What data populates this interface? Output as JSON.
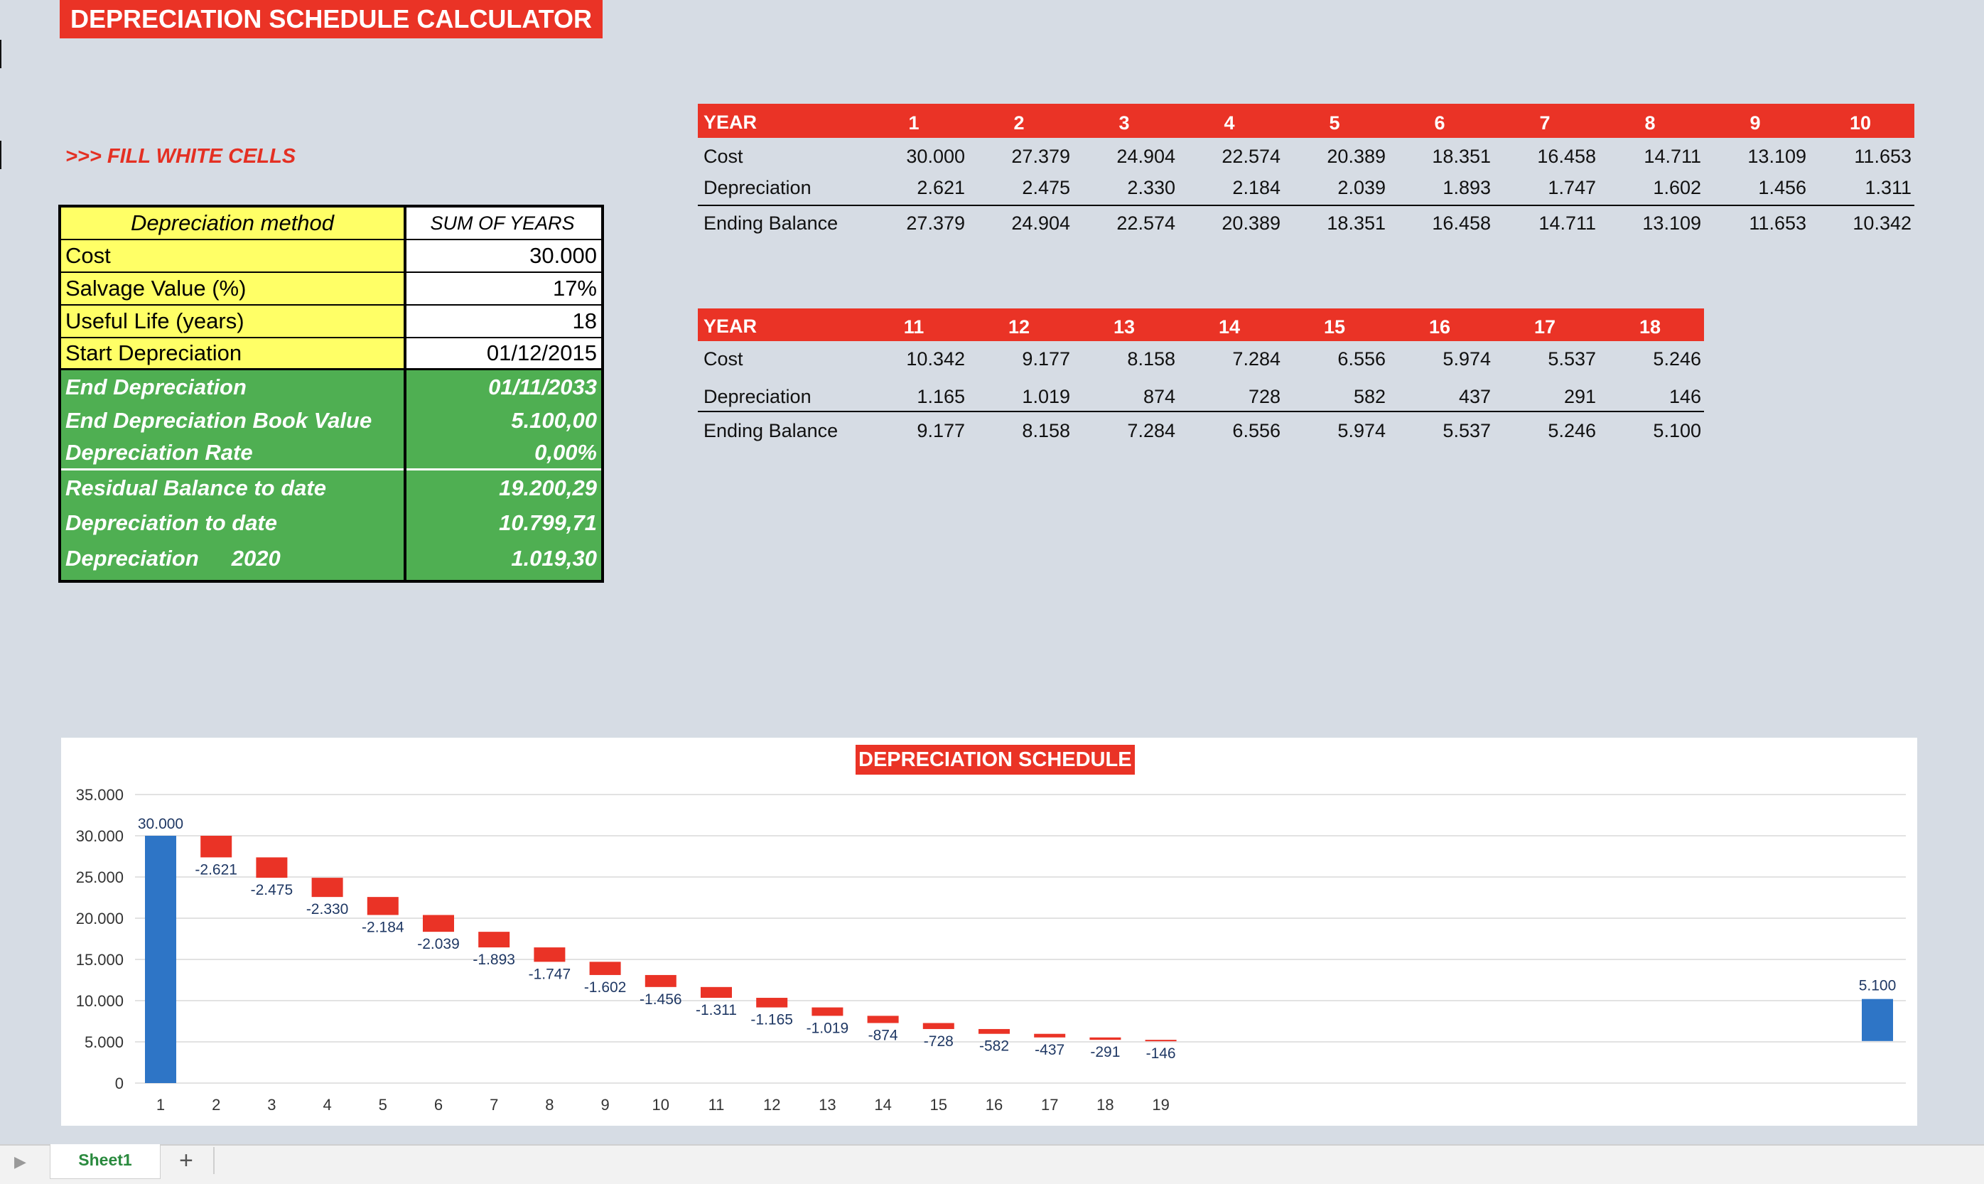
{
  "title": "DEPRECIATION SCHEDULE CALCULATOR",
  "fill_hint": ">>> FILL WHITE CELLS",
  "inputs": {
    "method_label": "Depreciation method",
    "method_value": "SUM OF YEARS",
    "cost_label": "Cost",
    "cost_value": "30.000",
    "salvage_label": "Salvage Value (%)",
    "salvage_value": "17%",
    "life_label": "Useful Life (years)",
    "life_value": "18",
    "start_label": "Start Depreciation",
    "start_value": "01/12/2015"
  },
  "results": {
    "end_dep_label": "End Depreciation",
    "end_dep_value": "01/11/2033",
    "end_book_label": "End Depreciation Book Value",
    "end_book_value": "5.100,00",
    "rate_label": "Depreciation Rate",
    "rate_value": "0,00%",
    "residual_label": "Residual Balance to date",
    "residual_value": "19.200,29",
    "to_date_label": "Depreciation to date",
    "to_date_value": "10.799,71",
    "year_dep_label": "Depreciation",
    "year_dep_year": "2020",
    "year_dep_value": "1.019,30"
  },
  "schedule_labels": {
    "year": "YEAR",
    "cost": "Cost",
    "depreciation": "Depreciation",
    "ending": "Ending Balance"
  },
  "schedule1": {
    "years": [
      "1",
      "2",
      "3",
      "4",
      "5",
      "6",
      "7",
      "8",
      "9",
      "10"
    ],
    "cost": [
      "30.000",
      "27.379",
      "24.904",
      "22.574",
      "20.389",
      "18.351",
      "16.458",
      "14.711",
      "13.109",
      "11.653"
    ],
    "depreciation": [
      "2.621",
      "2.475",
      "2.330",
      "2.184",
      "2.039",
      "1.893",
      "1.747",
      "1.602",
      "1.456",
      "1.311"
    ],
    "ending": [
      "27.379",
      "24.904",
      "22.574",
      "20.389",
      "18.351",
      "16.458",
      "14.711",
      "13.109",
      "11.653",
      "10.342"
    ]
  },
  "schedule2": {
    "years": [
      "11",
      "12",
      "13",
      "14",
      "15",
      "16",
      "17",
      "18"
    ],
    "cost": [
      "10.342",
      "9.177",
      "8.158",
      "7.284",
      "6.556",
      "5.974",
      "5.537",
      "5.246"
    ],
    "depreciation": [
      "1.165",
      "1.019",
      "874",
      "728",
      "582",
      "437",
      "291",
      "146"
    ],
    "ending": [
      "9.177",
      "8.158",
      "7.284",
      "6.556",
      "5.974",
      "5.537",
      "5.246",
      "5.100"
    ]
  },
  "chart_data": {
    "type": "bar",
    "title": "DEPRECIATION SCHEDULE",
    "categories": [
      "1",
      "2",
      "3",
      "4",
      "5",
      "6",
      "7",
      "8",
      "9",
      "10",
      "11",
      "12",
      "13",
      "14",
      "15",
      "16",
      "17",
      "18",
      "19"
    ],
    "ylim": [
      0,
      35000
    ],
    "yticks": [
      0,
      5000,
      10000,
      15000,
      20000,
      25000,
      30000,
      35000
    ],
    "ytick_labels": [
      "0",
      "5.000",
      "10.000",
      "15.000",
      "20.000",
      "25.000",
      "30.000",
      "35.000"
    ],
    "grid": true,
    "start": {
      "category": "1",
      "value": 30000,
      "label": "30.000"
    },
    "decrements": [
      2621,
      2475,
      2330,
      2184,
      2039,
      1893,
      1747,
      1602,
      1456,
      1311,
      1165,
      1019,
      874,
      728,
      582,
      437,
      291,
      146
    ],
    "decrement_labels": [
      "-2.621",
      "-2.475",
      "-2.330",
      "-2.184",
      "-2.039",
      "-1.893",
      "-1.747",
      "-1.602",
      "-1.456",
      "-1.311",
      "-1.165",
      "-1.019",
      "-874",
      "-728",
      "-582",
      "-437",
      "-291",
      "-146"
    ],
    "end": {
      "value": 5100,
      "label": "5.100"
    },
    "colors": {
      "total": "#2e75c6",
      "decrease": "#ea3326",
      "label": "#1f3864",
      "axis_text": "#333333",
      "grid": "#d9d9d9"
    }
  },
  "sheet_tabs": {
    "active": "Sheet1",
    "add": "+",
    "scroll": "▶"
  }
}
